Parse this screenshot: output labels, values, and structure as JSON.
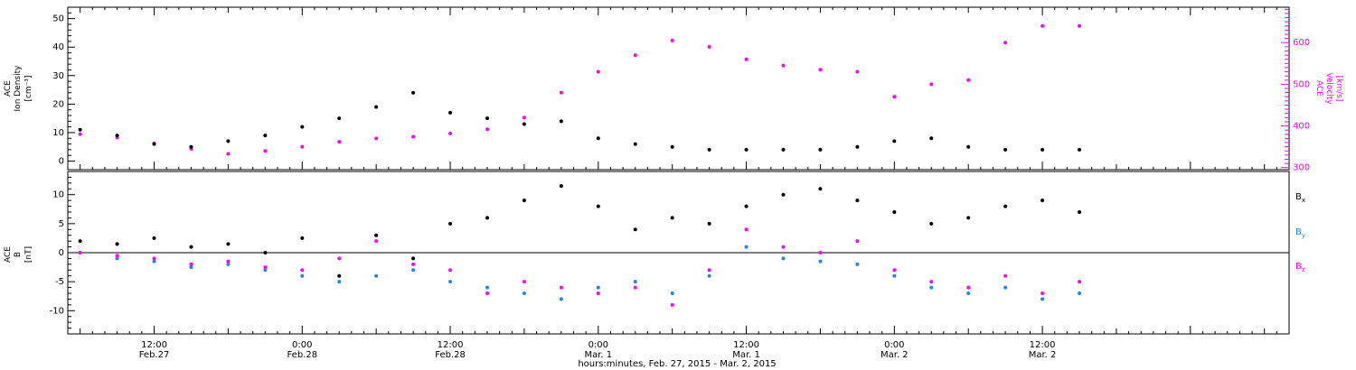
{
  "xaxis": {
    "label": "hours:minutes, Feb. 27, 2015 - Mar. 2, 2015",
    "range_hours": [
      5,
      104
    ],
    "ticks": [
      {
        "h": 12,
        "top": "12:00",
        "bottom": "Feb.27"
      },
      {
        "h": 24,
        "top": "0:00",
        "bottom": "Feb.28"
      },
      {
        "h": 36,
        "top": "12:00",
        "bottom": "Feb.28"
      },
      {
        "h": 48,
        "top": "0:00",
        "bottom": "Mar. 1"
      },
      {
        "h": 60,
        "top": "12:00",
        "bottom": "Mar. 1"
      },
      {
        "h": 72,
        "top": "0:00",
        "bottom": "Mar. 2"
      },
      {
        "h": 84,
        "top": "12:00",
        "bottom": "Mar. 2"
      }
    ]
  },
  "panel1": {
    "ylabel_left": [
      "ACE",
      "Ion Density",
      "[cm⁻³]"
    ],
    "ylabel_right": [
      "ACE",
      "Velocity",
      "[km/s]"
    ],
    "left_ylim": [
      -3,
      54
    ],
    "left_ticks": [
      "0",
      "10",
      "20",
      "30",
      "40",
      "50"
    ],
    "right_ylim": [
      295,
      685
    ],
    "right_ticks": [
      "300",
      "400",
      "500",
      "600"
    ]
  },
  "panel2": {
    "ylabel": [
      "ACE",
      "B",
      "[nT]"
    ],
    "ylim": [
      -14,
      14
    ],
    "ticks": [
      "-10",
      "-5",
      "0",
      "5",
      "10"
    ],
    "legend": [
      {
        "base": "B",
        "sub": "x",
        "color": "#000000"
      },
      {
        "base": "B",
        "sub": "y",
        "color": "#1e88e5"
      },
      {
        "base": "B",
        "sub": "z",
        "color": "#ff00ff"
      }
    ]
  },
  "chart_data": {
    "type": "scatter",
    "xlabel": "hours:minutes, Feb. 27, 2015 - Mar. 2, 2015",
    "xlim_hours": [
      5,
      104
    ],
    "x_hours": [
      6,
      9,
      12,
      15,
      18,
      21,
      24,
      27,
      30,
      33,
      36,
      39,
      42,
      45,
      48,
      51,
      54,
      57,
      60,
      63,
      66,
      69,
      72,
      75,
      78,
      81,
      84,
      87
    ],
    "panels": [
      {
        "name": "density-velocity",
        "series": [
          {
            "name": "Ion Density",
            "axis": "left",
            "units": "cm^-3",
            "color": "#000000",
            "values": [
              11,
              9,
              6,
              5,
              7,
              9,
              12,
              15,
              19,
              24,
              17,
              15,
              13,
              14,
              8,
              6,
              5,
              4,
              4,
              4,
              4,
              5,
              7,
              8,
              5,
              4,
              4,
              4
            ]
          },
          {
            "name": "Velocity",
            "axis": "right",
            "units": "km/s",
            "color": "#ff00ff",
            "values": [
              380,
              372,
              358,
              345,
              333,
              340,
              350,
              362,
              370,
              374,
              382,
              392,
              420,
              480,
              530,
              570,
              605,
              590,
              560,
              545,
              535,
              530,
              470,
              500,
              510,
              600,
              640,
              640
            ]
          }
        ],
        "left_ylim": [
          -3,
          54
        ],
        "right_ylim": [
          295,
          685
        ]
      },
      {
        "name": "magnetic-field",
        "ylabel": "B [nT]",
        "series": [
          {
            "name": "Bx",
            "color": "#000000",
            "values": [
              2.0,
              1.5,
              2.5,
              1.0,
              1.5,
              0.0,
              2.5,
              -4.0,
              3.0,
              -1.0,
              5.0,
              6.0,
              9.0,
              11.5,
              8.0,
              4.0,
              6.0,
              5.0,
              8.0,
              10.0,
              11.0,
              9.0,
              7.0,
              5.0,
              6.0,
              8.0,
              9.0,
              7.0
            ]
          },
          {
            "name": "By",
            "color": "#1e88e5",
            "values": [
              0.0,
              -1.0,
              -1.5,
              -2.5,
              -2.0,
              -3.0,
              -4.0,
              -5.0,
              -4.0,
              -3.0,
              -5.0,
              -6.0,
              -7.0,
              -8.0,
              -6.0,
              -5.0,
              -7.0,
              -4.0,
              1.0,
              -1.0,
              -1.5,
              -2.0,
              -4.0,
              -6.0,
              -7.0,
              -6.0,
              -8.0,
              -7.0
            ]
          },
          {
            "name": "Bz",
            "color": "#ff00ff",
            "values": [
              0.0,
              -0.5,
              -1.0,
              -2.0,
              -1.5,
              -2.5,
              -3.0,
              -1.0,
              2.0,
              -2.0,
              -3.0,
              -7.0,
              -5.0,
              -6.0,
              -7.0,
              -6.0,
              -9.0,
              -3.0,
              4.0,
              1.0,
              0.0,
              2.0,
              -3.0,
              -5.0,
              -6.0,
              -4.0,
              -7.0,
              -5.0
            ]
          }
        ],
        "ylim": [
          -14,
          14
        ]
      }
    ]
  }
}
